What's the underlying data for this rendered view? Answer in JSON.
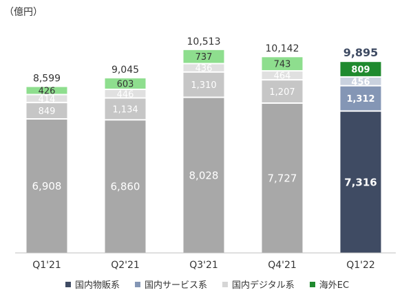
{
  "unit_label": "（億円）",
  "chart_data": {
    "type": "bar",
    "stacked": true,
    "title": "",
    "xlabel": "",
    "ylabel": "億円",
    "ylim": [
      0,
      12000
    ],
    "categories": [
      "Q1'21",
      "Q2'21",
      "Q3'21",
      "Q4'21",
      "Q1'22"
    ],
    "totals": [
      "8,599",
      "9,045",
      "10,513",
      "10,142",
      "9,895"
    ],
    "series": [
      {
        "name": "国内物販系",
        "values": [
          6908,
          6860,
          8028,
          7727,
          7316
        ],
        "labels": [
          "6,908",
          "6,860",
          "8,028",
          "7,727",
          "7,316"
        ]
      },
      {
        "name": "国内サービス系",
        "values": [
          849,
          1134,
          1310,
          1207,
          1312
        ],
        "labels": [
          "849",
          "1,134",
          "1,310",
          "1,207",
          "1,312"
        ]
      },
      {
        "name": "国内デジタル系",
        "values": [
          414,
          446,
          436,
          464,
          456
        ],
        "labels": [
          "414",
          "446",
          "436",
          "464",
          "456"
        ]
      },
      {
        "name": "海外EC",
        "values": [
          426,
          603,
          737,
          743,
          809
        ],
        "labels": [
          "426",
          "603",
          "737",
          "743",
          "809"
        ]
      }
    ],
    "colors": {
      "default": [
        "#a8a8a8",
        "#c6c6c6",
        "#e0e0e0",
        "#8ede8e"
      ],
      "highlight": [
        "#3f4b63",
        "#8496b5",
        "#c9d1de",
        "#1f8a2e"
      ]
    },
    "highlight_index": 4,
    "legend": {
      "position": "bottom",
      "items": [
        {
          "name": "国内物販系",
          "color": "#3f4b63"
        },
        {
          "name": "国内サービス系",
          "color": "#8496b5"
        },
        {
          "name": "国内デジタル系",
          "color": "#d6d6d6"
        },
        {
          "name": "海外EC",
          "color": "#1f8a2e"
        }
      ]
    }
  }
}
